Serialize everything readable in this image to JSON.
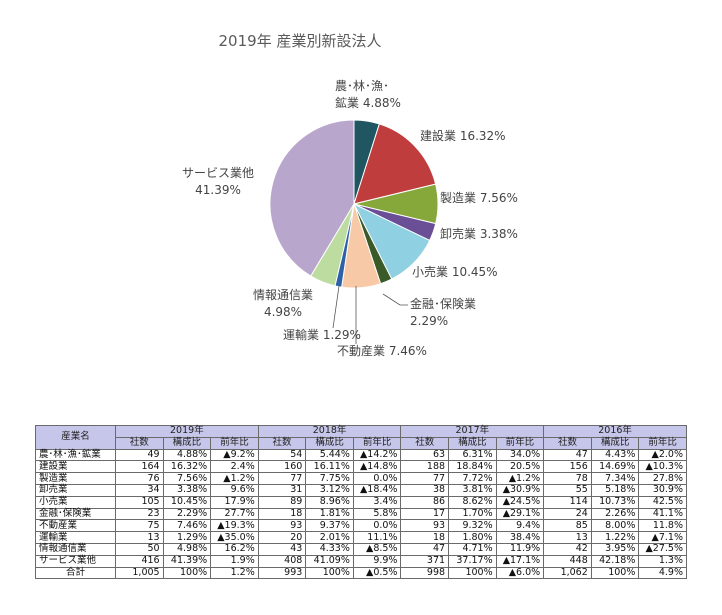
{
  "chart_data": [
    {
      "type": "pie",
      "title": "2019年  産業別新設法人",
      "slices": [
        {
          "label_lines": [
            "農･林･漁･",
            "鉱業 4.88%"
          ],
          "value": 4.88,
          "color": "#1f5662"
        },
        {
          "label_lines": [
            "建設業 16.32%"
          ],
          "value": 16.32,
          "color": "#bf3d3d"
        },
        {
          "label_lines": [
            "製造業 7.56%"
          ],
          "value": 7.56,
          "color": "#86a83a"
        },
        {
          "label_lines": [
            "卸売業 3.38%"
          ],
          "value": 3.38,
          "color": "#6a4f96"
        },
        {
          "label_lines": [
            "小売業 10.45%"
          ],
          "value": 10.45,
          "color": "#8fd0e2"
        },
        {
          "label_lines": [
            "金融･保険業",
            "2.29%"
          ],
          "value": 2.29,
          "color": "#3a5a2a"
        },
        {
          "label_lines": [
            "不動産業 7.46%"
          ],
          "value": 7.46,
          "color": "#f7c9a6"
        },
        {
          "label_lines": [
            "運輸業 1.29%"
          ],
          "value": 1.29,
          "color": "#2e62a8"
        },
        {
          "label_lines": [
            "情報通信業",
            "4.98%"
          ],
          "value": 4.98,
          "color": "#bcdca0"
        },
        {
          "label_lines": [
            "サービス業他",
            "41.39%"
          ],
          "value": 41.39,
          "color": "#b8a6cc"
        }
      ]
    },
    {
      "type": "table",
      "name_header": "産業名",
      "year_headers": [
        "2019年",
        "2018年",
        "2017年",
        "2016年"
      ],
      "sub_headers": [
        "社数",
        "構成比",
        "前年比"
      ],
      "rows": [
        {
          "name": "農･林･漁･鉱業",
          "cells": [
            "49",
            "4.88%",
            "▲9.2%",
            "54",
            "5.44%",
            "▲14.2%",
            "63",
            "6.31%",
            "34.0%",
            "47",
            "4.43%",
            "▲2.0%"
          ]
        },
        {
          "name": "建設業",
          "cells": [
            "164",
            "16.32%",
            "2.4%",
            "160",
            "16.11%",
            "▲14.8%",
            "188",
            "18.84%",
            "20.5%",
            "156",
            "14.69%",
            "▲10.3%"
          ]
        },
        {
          "name": "製造業",
          "cells": [
            "76",
            "7.56%",
            "▲1.2%",
            "77",
            "7.75%",
            "0.0%",
            "77",
            "7.72%",
            "▲1.2%",
            "78",
            "7.34%",
            "27.8%"
          ]
        },
        {
          "name": "卸売業",
          "cells": [
            "34",
            "3.38%",
            "9.6%",
            "31",
            "3.12%",
            "▲18.4%",
            "38",
            "3.81%",
            "▲30.9%",
            "55",
            "5.18%",
            "30.9%"
          ]
        },
        {
          "name": "小売業",
          "cells": [
            "105",
            "10.45%",
            "17.9%",
            "89",
            "8.96%",
            "3.4%",
            "86",
            "8.62%",
            "▲24.5%",
            "114",
            "10.73%",
            "42.5%"
          ]
        },
        {
          "name": "金融･保険業",
          "cells": [
            "23",
            "2.29%",
            "27.7%",
            "18",
            "1.81%",
            "5.8%",
            "17",
            "1.70%",
            "▲29.1%",
            "24",
            "2.26%",
            "41.1%"
          ]
        },
        {
          "name": "不動産業",
          "cells": [
            "75",
            "7.46%",
            "▲19.3%",
            "93",
            "9.37%",
            "0.0%",
            "93",
            "9.32%",
            "9.4%",
            "85",
            "8.00%",
            "11.8%"
          ]
        },
        {
          "name": "運輸業",
          "cells": [
            "13",
            "1.29%",
            "▲35.0%",
            "20",
            "2.01%",
            "11.1%",
            "18",
            "1.80%",
            "38.4%",
            "13",
            "1.22%",
            "▲7.1%"
          ]
        },
        {
          "name": "情報通信業",
          "cells": [
            "50",
            "4.98%",
            "16.2%",
            "43",
            "4.33%",
            "▲8.5%",
            "47",
            "4.71%",
            "11.9%",
            "42",
            "3.95%",
            "▲27.5%"
          ]
        },
        {
          "name": "サービス業他",
          "cells": [
            "416",
            "41.39%",
            "1.9%",
            "408",
            "41.09%",
            "9.9%",
            "371",
            "37.17%",
            "▲17.1%",
            "448",
            "42.18%",
            "1.3%"
          ]
        }
      ],
      "total": {
        "name": "合計",
        "cells": [
          "1,005",
          "100%",
          "1.2%",
          "993",
          "100%",
          "▲0.5%",
          "998",
          "100%",
          "▲6.0%",
          "1,062",
          "100%",
          "4.9%"
        ]
      }
    }
  ]
}
